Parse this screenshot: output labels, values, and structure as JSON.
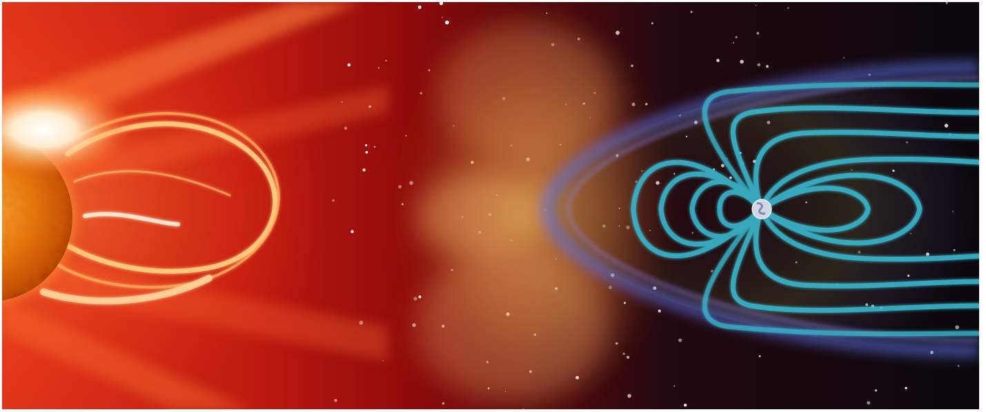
{
  "scene": {
    "subjects": [
      "sun-icon",
      "coronal-mass-ejection",
      "solar-wind",
      "magnetosphere",
      "earth-icon",
      "starfield"
    ],
    "colors": {
      "sun_core": "#ff8c1a",
      "sun_dark": "#c23a00",
      "corona_red": "#b20f0a",
      "glow_white": "#fff6e0",
      "solar_wind": "#f0a64a",
      "space": "#0e0a12",
      "bow_shock_blue": "#5b6fe0",
      "field_lines": "#3ab8cf"
    },
    "star_count": 140
  }
}
